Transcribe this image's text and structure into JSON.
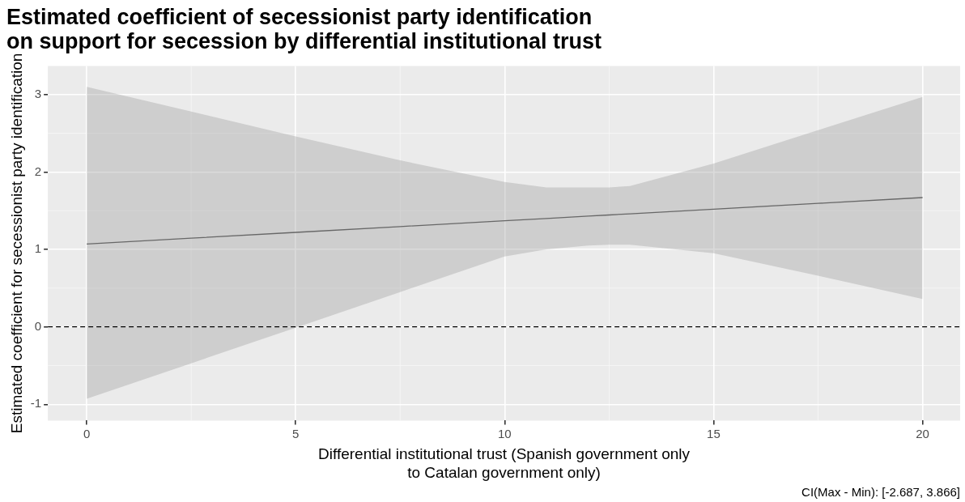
{
  "chart_data": {
    "type": "line",
    "title": "Estimated coefficient of secessionist party identification on support for secession by differential institutional trust",
    "xlabel": "Differential institutional trust (Spanish government only to Catalan government only)",
    "ylabel": "Estimated coefficient for secessionist party identification",
    "annotations": [
      "CI(Max - Min): [-2.687, 3.866]"
    ],
    "series": [
      {
        "color": "#4d4d4d",
        "x": [
          0,
          2.5,
          5,
          7.5,
          10,
          11,
          12,
          12.5,
          13,
          15,
          17.5,
          20
        ],
        "values": [
          1.07,
          1.145,
          1.22,
          1.295,
          1.37,
          1.4,
          1.43,
          1.445,
          1.46,
          1.52,
          1.595,
          1.67
        ],
        "lower": [
          -0.93,
          -0.47,
          -0.01,
          0.45,
          0.91,
          1.0,
          1.05,
          1.06,
          1.06,
          0.95,
          0.66,
          0.36
        ],
        "upper": [
          3.1,
          2.78,
          2.46,
          2.15,
          1.87,
          1.8,
          1.8,
          1.8,
          1.82,
          2.11,
          2.54,
          2.97
        ]
      }
    ],
    "xlim": [
      -0.93,
      20.9
    ],
    "xticks": [
      0,
      5,
      10,
      15,
      20
    ],
    "ylim": [
      -1.21,
      3.37
    ],
    "yticks": [
      -1,
      0,
      1,
      2,
      3
    ],
    "grid": true,
    "legend": false,
    "marker": "none",
    "line_style": "solid",
    "ref_lines": [
      {
        "axis": "y",
        "value": 0,
        "line_style": "dashed",
        "color": "#000000"
      }
    ]
  }
}
